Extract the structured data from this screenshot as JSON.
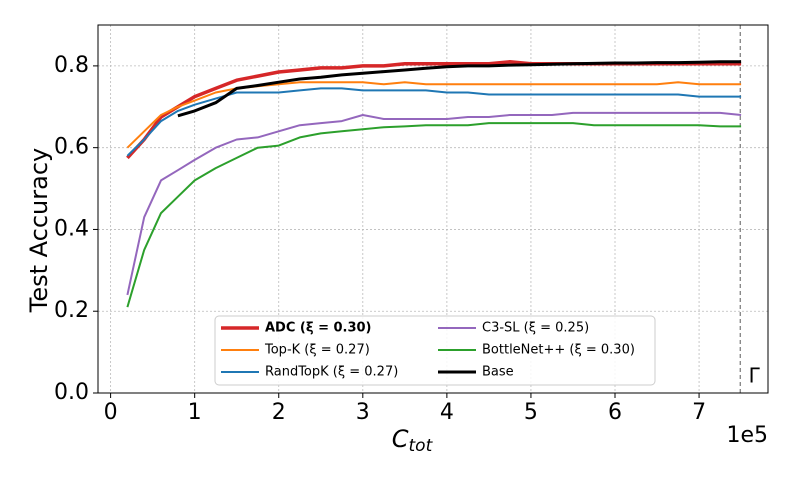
{
  "chart_data": {
    "type": "line",
    "ylabel": "Test Accuracy",
    "xlabel": "C",
    "xlabel_subscript": "tot",
    "x_offset_label": "1e5",
    "annotation": "Γ",
    "annotation_x": 7.49,
    "x": [
      0.2,
      0.4,
      0.6,
      0.8,
      1.0,
      1.25,
      1.5,
      1.75,
      2.0,
      2.25,
      2.5,
      2.75,
      3.0,
      3.25,
      3.5,
      3.75,
      4.0,
      4.25,
      4.5,
      4.75,
      5.0,
      5.25,
      5.5,
      5.75,
      6.0,
      6.25,
      6.5,
      6.75,
      7.0,
      7.25,
      7.5
    ],
    "series": [
      {
        "name": "ADC (ξ = 0.30)",
        "color": "#d62728",
        "width": 3.5,
        "values": [
          0.575,
          0.62,
          0.675,
          0.7,
          0.725,
          0.745,
          0.765,
          0.775,
          0.785,
          0.79,
          0.795,
          0.795,
          0.8,
          0.8,
          0.805,
          0.805,
          0.805,
          0.805,
          0.805,
          0.81,
          0.805,
          0.805,
          0.805,
          0.805,
          0.805,
          0.805,
          0.805,
          0.805,
          0.805,
          0.805,
          0.805
        ]
      },
      {
        "name": "Top-K (ξ = 0.27)",
        "color": "#ff7f0e",
        "width": 2,
        "values": [
          0.6,
          0.64,
          0.68,
          0.7,
          0.715,
          0.735,
          0.745,
          0.75,
          0.755,
          0.76,
          0.76,
          0.76,
          0.76,
          0.755,
          0.76,
          0.755,
          0.755,
          0.755,
          0.755,
          0.755,
          0.755,
          0.755,
          0.755,
          0.755,
          0.755,
          0.755,
          0.755,
          0.76,
          0.755,
          0.755,
          0.755
        ]
      },
      {
        "name": "RandTopK (ξ = 0.27)",
        "color": "#1f77b4",
        "width": 2,
        "values": [
          0.58,
          0.62,
          0.665,
          0.69,
          0.705,
          0.72,
          0.735,
          0.735,
          0.735,
          0.74,
          0.745,
          0.745,
          0.74,
          0.74,
          0.74,
          0.74,
          0.735,
          0.735,
          0.73,
          0.73,
          0.73,
          0.73,
          0.73,
          0.73,
          0.73,
          0.73,
          0.73,
          0.73,
          0.725,
          0.725,
          0.725
        ]
      },
      {
        "name": "C3-SL (ξ = 0.25)",
        "color": "#9467bd",
        "width": 2,
        "values": [
          0.24,
          0.43,
          0.52,
          0.545,
          0.57,
          0.6,
          0.62,
          0.625,
          0.64,
          0.655,
          0.66,
          0.665,
          0.68,
          0.67,
          0.67,
          0.67,
          0.67,
          0.675,
          0.675,
          0.68,
          0.68,
          0.68,
          0.685,
          0.685,
          0.685,
          0.685,
          0.685,
          0.685,
          0.685,
          0.685,
          0.68
        ]
      },
      {
        "name": "BottleNet++ (ξ = 0.30)",
        "color": "#2ca02c",
        "width": 2,
        "values": [
          0.21,
          0.35,
          0.44,
          0.48,
          0.52,
          0.55,
          0.575,
          0.6,
          0.605,
          0.625,
          0.635,
          0.64,
          0.645,
          0.65,
          0.652,
          0.655,
          0.655,
          0.655,
          0.66,
          0.66,
          0.66,
          0.66,
          0.66,
          0.655,
          0.655,
          0.655,
          0.655,
          0.655,
          0.655,
          0.652,
          0.652
        ]
      },
      {
        "name": "Base",
        "color": "#000000",
        "width": 3,
        "values": [
          null,
          null,
          null,
          0.678,
          0.69,
          0.71,
          0.745,
          0.752,
          0.76,
          0.768,
          0.772,
          0.778,
          0.782,
          0.786,
          0.79,
          0.794,
          0.798,
          0.8,
          0.8,
          0.802,
          0.803,
          0.804,
          0.805,
          0.806,
          0.807,
          0.807,
          0.808,
          0.808,
          0.809,
          0.81,
          0.81
        ]
      }
    ],
    "xlim": [
      -0.15,
      7.82
    ],
    "ylim": [
      0,
      0.9
    ],
    "xticks": [
      0,
      1,
      2,
      3,
      4,
      5,
      6,
      7
    ],
    "yticks": [
      {
        "value": 0,
        "label": "0.0"
      },
      0.2,
      0.4,
      0.6,
      0.8
    ],
    "grid": true,
    "legend": "lower center"
  }
}
